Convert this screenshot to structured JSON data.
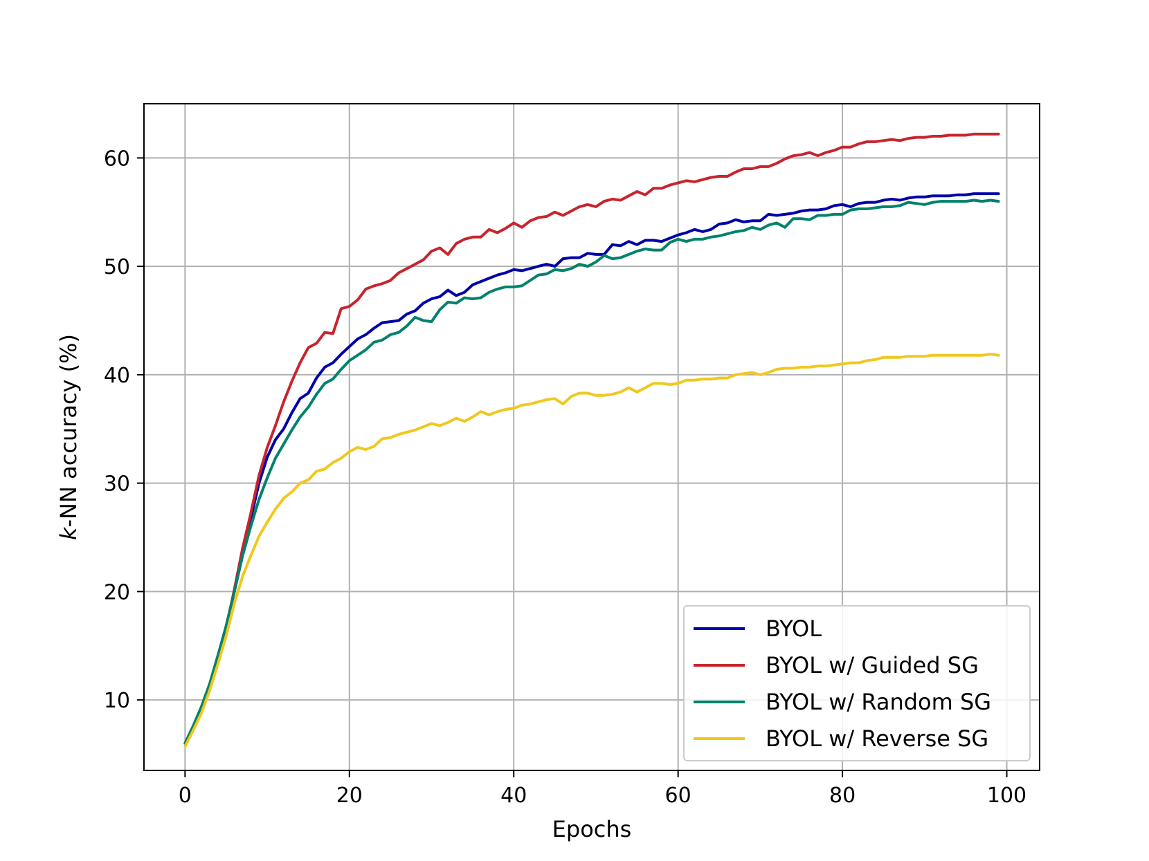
{
  "chart_data": {
    "type": "line",
    "title": "",
    "xlabel": "Epochs",
    "ylabel_italic": "k",
    "ylabel_rest": "-NN accuracy (%)",
    "xlim": [
      -5,
      104
    ],
    "ylim": [
      3.5,
      65
    ],
    "xticks": [
      0,
      20,
      40,
      60,
      80,
      100
    ],
    "yticks": [
      10,
      20,
      30,
      40,
      50,
      60
    ],
    "grid": true,
    "legend_position": "lower-right",
    "series": [
      {
        "name": "BYOL",
        "color": "#0000aa",
        "x": [
          0,
          1,
          2,
          3,
          4,
          5,
          6,
          7,
          8,
          9,
          10,
          11,
          12,
          13,
          14,
          15,
          16,
          17,
          18,
          19,
          20,
          21,
          22,
          23,
          24,
          25,
          26,
          27,
          28,
          29,
          30,
          31,
          32,
          33,
          34,
          35,
          36,
          37,
          38,
          39,
          40,
          41,
          42,
          43,
          44,
          45,
          46,
          47,
          48,
          49,
          50,
          51,
          52,
          53,
          54,
          55,
          56,
          57,
          58,
          59,
          60,
          61,
          62,
          63,
          64,
          65,
          66,
          67,
          68,
          69,
          70,
          71,
          72,
          73,
          74,
          75,
          76,
          77,
          78,
          79,
          80,
          81,
          82,
          83,
          84,
          85,
          86,
          87,
          88,
          89,
          90,
          91,
          92,
          93,
          94,
          95,
          96,
          97,
          98,
          99
        ],
        "y": [
          6.0,
          7.6,
          9.3,
          11.4,
          14.0,
          16.8,
          20.0,
          23.5,
          26.7,
          30.0,
          32.4,
          34.0,
          35.0,
          36.5,
          37.8,
          38.3,
          39.7,
          40.7,
          41.1,
          41.9,
          42.6,
          43.3,
          43.7,
          44.3,
          44.8,
          44.9,
          45.0,
          45.6,
          45.9,
          46.6,
          47.0,
          47.2,
          47.8,
          47.3,
          47.6,
          48.3,
          48.6,
          48.9,
          49.2,
          49.4,
          49.7,
          49.6,
          49.8,
          50.0,
          50.2,
          50.0,
          50.7,
          50.8,
          50.8,
          51.2,
          51.1,
          51.1,
          52.0,
          51.9,
          52.3,
          52.0,
          52.4,
          52.4,
          52.3,
          52.6,
          52.9,
          53.1,
          53.4,
          53.2,
          53.4,
          53.9,
          54.0,
          54.3,
          54.1,
          54.2,
          54.2,
          54.8,
          54.7,
          54.8,
          54.9,
          55.1,
          55.2,
          55.2,
          55.3,
          55.6,
          55.7,
          55.5,
          55.8,
          55.9,
          55.9,
          56.1,
          56.2,
          56.1,
          56.3,
          56.4,
          56.4,
          56.5,
          56.5,
          56.5,
          56.6,
          56.6,
          56.7,
          56.7,
          56.7,
          56.7
        ]
      },
      {
        "name": "BYOL w/ Guided SG",
        "color": "#c8242d",
        "x": [
          0,
          1,
          2,
          3,
          4,
          5,
          6,
          7,
          8,
          9,
          10,
          11,
          12,
          13,
          14,
          15,
          16,
          17,
          18,
          19,
          20,
          21,
          22,
          23,
          24,
          25,
          26,
          27,
          28,
          29,
          30,
          31,
          32,
          33,
          34,
          35,
          36,
          37,
          38,
          39,
          40,
          41,
          42,
          43,
          44,
          45,
          46,
          47,
          48,
          49,
          50,
          51,
          52,
          53,
          54,
          55,
          56,
          57,
          58,
          59,
          60,
          61,
          62,
          63,
          64,
          65,
          66,
          67,
          68,
          69,
          70,
          71,
          72,
          73,
          74,
          75,
          76,
          77,
          78,
          79,
          80,
          81,
          82,
          83,
          84,
          85,
          86,
          87,
          88,
          89,
          90,
          91,
          92,
          93,
          94,
          95,
          96,
          97,
          98,
          99
        ],
        "y": [
          6.0,
          7.5,
          9.2,
          11.3,
          13.8,
          16.6,
          20.2,
          24.0,
          27.2,
          30.7,
          33.3,
          35.3,
          37.5,
          39.4,
          41.1,
          42.5,
          42.9,
          43.9,
          43.8,
          46.1,
          46.3,
          46.9,
          47.9,
          48.2,
          48.4,
          48.7,
          49.4,
          49.8,
          50.2,
          50.6,
          51.4,
          51.7,
          51.1,
          52.1,
          52.5,
          52.7,
          52.7,
          53.4,
          53.1,
          53.5,
          54.0,
          53.6,
          54.2,
          54.5,
          54.6,
          55.0,
          54.7,
          55.1,
          55.5,
          55.7,
          55.5,
          56.0,
          56.2,
          56.1,
          56.5,
          56.9,
          56.6,
          57.2,
          57.2,
          57.5,
          57.7,
          57.9,
          57.8,
          58.0,
          58.2,
          58.3,
          58.3,
          58.7,
          59.0,
          59.0,
          59.2,
          59.2,
          59.5,
          59.9,
          60.2,
          60.3,
          60.5,
          60.2,
          60.5,
          60.7,
          61.0,
          61.0,
          61.3,
          61.5,
          61.5,
          61.6,
          61.7,
          61.6,
          61.8,
          61.9,
          61.9,
          62.0,
          62.0,
          62.1,
          62.1,
          62.1,
          62.2,
          62.2,
          62.2,
          62.2
        ]
      },
      {
        "name": "BYOL w/ Random SG",
        "color": "#00826b",
        "x": [
          0,
          1,
          2,
          3,
          4,
          5,
          6,
          7,
          8,
          9,
          10,
          11,
          12,
          13,
          14,
          15,
          16,
          17,
          18,
          19,
          20,
          21,
          22,
          23,
          24,
          25,
          26,
          27,
          28,
          29,
          30,
          31,
          32,
          33,
          34,
          35,
          36,
          37,
          38,
          39,
          40,
          41,
          42,
          43,
          44,
          45,
          46,
          47,
          48,
          49,
          50,
          51,
          52,
          53,
          54,
          55,
          56,
          57,
          58,
          59,
          60,
          61,
          62,
          63,
          64,
          65,
          66,
          67,
          68,
          69,
          70,
          71,
          72,
          73,
          74,
          75,
          76,
          77,
          78,
          79,
          80,
          81,
          82,
          83,
          84,
          85,
          86,
          87,
          88,
          89,
          90,
          91,
          92,
          93,
          94,
          95,
          96,
          97,
          98,
          99
        ],
        "y": [
          6.0,
          7.6,
          9.4,
          11.5,
          14.1,
          16.8,
          20.0,
          23.3,
          26.0,
          28.5,
          30.5,
          32.3,
          33.6,
          34.9,
          36.1,
          37.0,
          38.2,
          39.2,
          39.6,
          40.5,
          41.3,
          41.8,
          42.3,
          43.0,
          43.2,
          43.7,
          43.9,
          44.5,
          45.3,
          45.0,
          44.9,
          46.0,
          46.7,
          46.6,
          47.1,
          47.0,
          47.1,
          47.6,
          47.9,
          48.1,
          48.1,
          48.2,
          48.7,
          49.2,
          49.3,
          49.7,
          49.6,
          49.8,
          50.2,
          50.0,
          50.4,
          51.0,
          50.7,
          50.8,
          51.1,
          51.4,
          51.6,
          51.5,
          51.5,
          52.2,
          52.5,
          52.3,
          52.5,
          52.5,
          52.7,
          52.8,
          53.0,
          53.2,
          53.3,
          53.6,
          53.4,
          53.8,
          54.0,
          53.6,
          54.4,
          54.4,
          54.3,
          54.7,
          54.7,
          54.8,
          54.8,
          55.2,
          55.3,
          55.3,
          55.4,
          55.5,
          55.5,
          55.6,
          55.9,
          55.8,
          55.7,
          55.9,
          56.0,
          56.0,
          56.0,
          56.0,
          56.1,
          56.0,
          56.1,
          56.0
        ]
      },
      {
        "name": "BYOL w/ Reverse SG",
        "color": "#f0c81e",
        "x": [
          0,
          1,
          2,
          3,
          4,
          5,
          6,
          7,
          8,
          9,
          10,
          11,
          12,
          13,
          14,
          15,
          16,
          17,
          18,
          19,
          20,
          21,
          22,
          23,
          24,
          25,
          26,
          27,
          28,
          29,
          30,
          31,
          32,
          33,
          34,
          35,
          36,
          37,
          38,
          39,
          40,
          41,
          42,
          43,
          44,
          45,
          46,
          47,
          48,
          49,
          50,
          51,
          52,
          53,
          54,
          55,
          56,
          57,
          58,
          59,
          60,
          61,
          62,
          63,
          64,
          65,
          66,
          67,
          68,
          69,
          70,
          71,
          72,
          73,
          74,
          75,
          76,
          77,
          78,
          79,
          80,
          81,
          82,
          83,
          84,
          85,
          86,
          87,
          88,
          89,
          90,
          91,
          92,
          93,
          94,
          95,
          96,
          97,
          98,
          99
        ],
        "y": [
          5.7,
          7.2,
          8.8,
          10.9,
          13.3,
          15.9,
          18.9,
          21.4,
          23.3,
          25.1,
          26.4,
          27.6,
          28.6,
          29.2,
          30.0,
          30.3,
          31.1,
          31.3,
          31.9,
          32.3,
          32.9,
          33.3,
          33.1,
          33.4,
          34.1,
          34.2,
          34.5,
          34.7,
          34.9,
          35.2,
          35.5,
          35.3,
          35.6,
          36.0,
          35.7,
          36.1,
          36.6,
          36.3,
          36.6,
          36.8,
          36.9,
          37.2,
          37.3,
          37.5,
          37.7,
          37.8,
          37.3,
          38.0,
          38.3,
          38.3,
          38.1,
          38.1,
          38.2,
          38.4,
          38.8,
          38.4,
          38.8,
          39.2,
          39.2,
          39.1,
          39.2,
          39.5,
          39.5,
          39.6,
          39.6,
          39.7,
          39.7,
          40.0,
          40.1,
          40.2,
          40.0,
          40.2,
          40.5,
          40.6,
          40.6,
          40.7,
          40.7,
          40.8,
          40.8,
          40.9,
          41.0,
          41.1,
          41.1,
          41.3,
          41.4,
          41.6,
          41.6,
          41.6,
          41.7,
          41.7,
          41.7,
          41.8,
          41.8,
          41.8,
          41.8,
          41.8,
          41.8,
          41.8,
          41.9,
          41.8
        ]
      }
    ]
  }
}
